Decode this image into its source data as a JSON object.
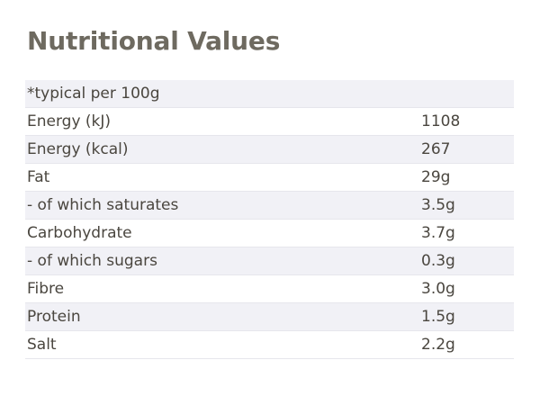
{
  "title": "Nutritional Values",
  "table": {
    "header": "*typical per 100g",
    "rows": [
      {
        "label": "Energy (kJ)",
        "value": "1108"
      },
      {
        "label": "Energy (kcal)",
        "value": "267"
      },
      {
        "label": "Fat",
        "value": "29g"
      },
      {
        "label": "- of which saturates",
        "value": "3.5g"
      },
      {
        "label": "Carbohydrate",
        "value": "3.7g"
      },
      {
        "label": "- of which sugars",
        "value": "0.3g"
      },
      {
        "label": "Fibre",
        "value": "3.0g"
      },
      {
        "label": "Protein",
        "value": "1.5g"
      },
      {
        "label": "Salt",
        "value": "2.2g"
      }
    ]
  }
}
